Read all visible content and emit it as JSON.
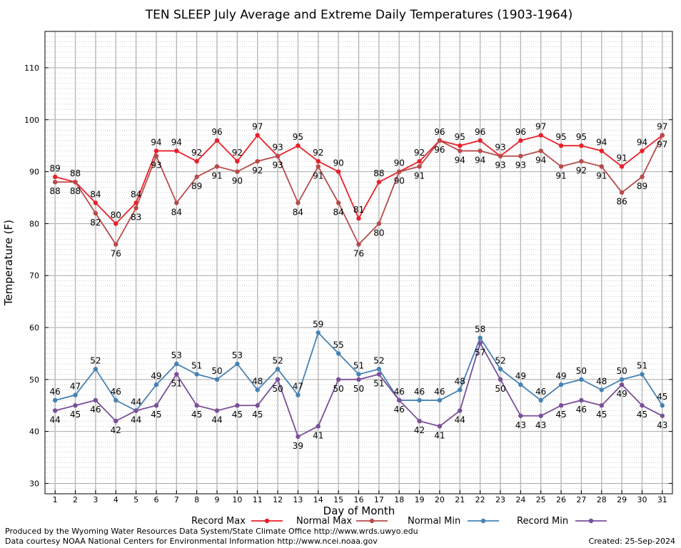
{
  "chart_data": {
    "type": "line",
    "title": "TEN SLEEP July Average and Extreme Daily Temperatures (1903-1964)",
    "xlabel": "Day of Month",
    "ylabel": "Temperature (F)",
    "x": [
      1,
      2,
      3,
      4,
      5,
      6,
      7,
      8,
      9,
      10,
      11,
      12,
      13,
      14,
      15,
      16,
      17,
      18,
      19,
      20,
      21,
      22,
      23,
      24,
      25,
      26,
      27,
      28,
      29,
      30,
      31
    ],
    "ylim": [
      28,
      117
    ],
    "yticks": [
      30,
      40,
      50,
      60,
      70,
      80,
      90,
      100,
      110
    ],
    "grid": true,
    "legend_position": "bottom",
    "series": [
      {
        "name": "Record Max",
        "color": "#e8202a",
        "values": [
          89,
          88,
          84,
          80,
          84,
          94,
          94,
          92,
          96,
          92,
          97,
          93,
          95,
          92,
          90,
          81,
          88,
          90,
          92,
          96,
          95,
          96,
          93,
          96,
          97,
          95,
          95,
          94,
          91,
          94,
          97
        ]
      },
      {
        "name": "Normal Max",
        "color": "#b84a4a",
        "values": [
          88,
          88,
          82,
          76,
          83,
          93,
          84,
          89,
          91,
          90,
          92,
          93,
          84,
          91,
          84,
          76,
          80,
          90,
          91,
          96,
          94,
          94,
          93,
          93,
          94,
          91,
          92,
          91,
          86,
          89,
          97
        ]
      },
      {
        "name": "Normal Min",
        "color": "#4682b4",
        "values": [
          46,
          47,
          52,
          46,
          44,
          49,
          53,
          51,
          50,
          53,
          48,
          52,
          47,
          59,
          55,
          51,
          52,
          46,
          46,
          46,
          48,
          58,
          52,
          49,
          46,
          49,
          50,
          48,
          50,
          51,
          45
        ]
      },
      {
        "name": "Record Min",
        "color": "#7a4f9a",
        "values": [
          44,
          45,
          46,
          42,
          44,
          45,
          51,
          45,
          44,
          45,
          45,
          50,
          39,
          41,
          50,
          50,
          51,
          46,
          42,
          41,
          44,
          57,
          50,
          43,
          43,
          45,
          46,
          45,
          49,
          45,
          43
        ]
      }
    ]
  },
  "footer": {
    "line1": "Produced by the Wyoming Water Resources Data System/State Climate Office http://www.wrds.uwyo.edu",
    "line2": "Data courtesy NOAA National Centers for Environmental Information http://www.ncei.noaa.gov",
    "created": "Created:  25-Sep-2024"
  }
}
